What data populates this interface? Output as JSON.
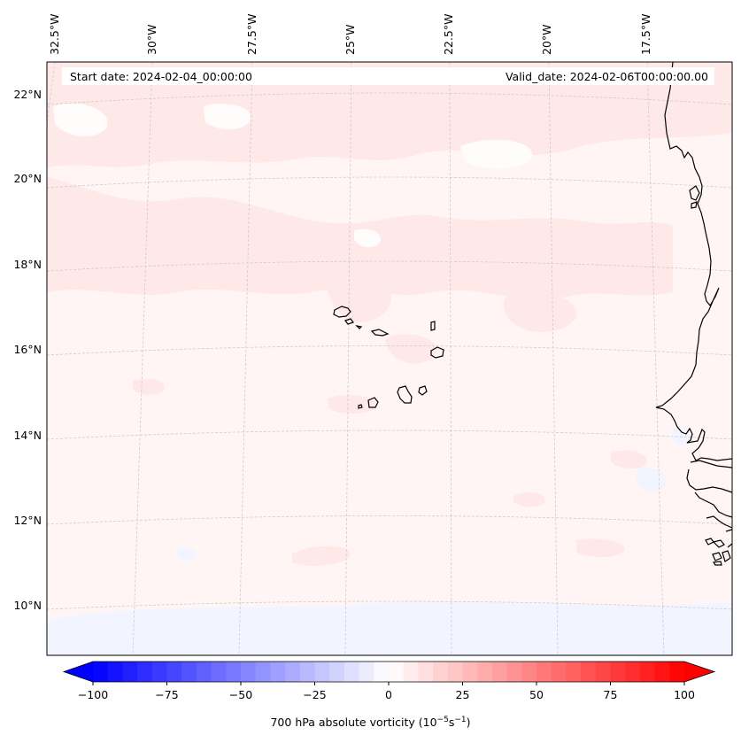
{
  "header": {
    "start_date": "Start date: 2024-02-04_00:00:00",
    "valid_date": "Valid_date: 2024-02-06T00:00:00.00"
  },
  "map": {
    "longitude_labels": [
      "32.5°W",
      "30°W",
      "27.5°W",
      "25°W",
      "22.5°W",
      "20°W",
      "17.5°W"
    ],
    "latitude_labels": [
      "22°N",
      "20°N",
      "18°N",
      "16°N",
      "14°N",
      "12°N",
      "10°N"
    ],
    "field": "700 hPa absolute vorticity",
    "colors": {
      "background_field": "#fff5f5",
      "positive_patch": "#ffe8e8",
      "negative_patch": "#f2f5ff",
      "coastline": "#000000",
      "gridline": "#cccccc"
    }
  },
  "colorbar": {
    "label_text": "700 hPa absolute vorticity (10",
    "label_exp1": "−5",
    "label_mid": "s",
    "label_exp2": "−1",
    "label_end": ")",
    "min": -100,
    "max": 100,
    "step": 5,
    "extend": "both",
    "ticks": [
      "−100",
      "−75",
      "−50",
      "−25",
      "0",
      "25",
      "50",
      "75",
      "100"
    ],
    "colormap": "bwr",
    "color_low": "#0000ff",
    "color_mid": "#ffffff",
    "color_high": "#ff0000"
  }
}
